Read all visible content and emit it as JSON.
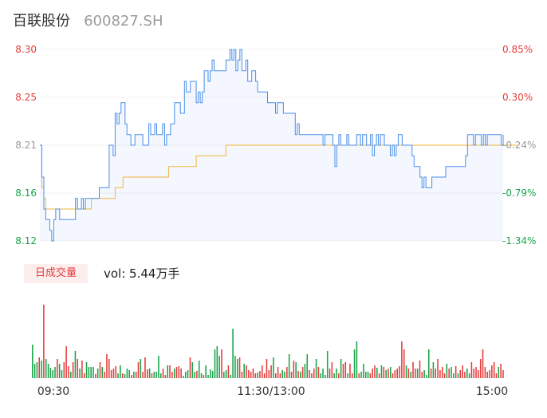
{
  "stock": {
    "name": "百联股份",
    "code": "600827.SH"
  },
  "volume_tab_label": "日成交量",
  "volume_text": "vol: 5.44万手",
  "colors": {
    "price_line": "#4a8ee8",
    "avg_line": "#f2b53a",
    "up": "#e43c3c",
    "down": "#1aa34a",
    "neutral": "#999999"
  },
  "chart_data": [
    {
      "type": "line",
      "ylim": [
        8.12,
        8.3
      ],
      "y_ticks": [
        "8.30",
        "8.25",
        "8.21",
        "8.16",
        "8.12"
      ],
      "pct_ticks": [
        "0.85%",
        "0.30%",
        "-0.24%",
        "-0.79%",
        "-1.34%"
      ],
      "x_ticks": [
        "09:30",
        "11:30/13:00",
        "15:00"
      ],
      "series": [
        {
          "key": "price",
          "values": [
            8.21,
            8.18,
            8.15,
            8.14,
            8.14,
            8.13,
            8.12,
            8.14,
            8.15,
            8.15,
            8.14,
            8.14,
            8.14,
            8.14,
            8.14,
            8.14,
            8.14,
            8.14,
            8.16,
            8.15,
            8.15,
            8.16,
            8.15,
            8.16,
            8.16,
            8.16,
            8.16,
            8.16,
            8.16,
            8.16,
            8.17,
            8.17,
            8.17,
            8.17,
            8.17,
            8.21,
            8.21,
            8.2,
            8.24,
            8.23,
            8.24,
            8.25,
            8.25,
            8.23,
            8.22,
            8.22,
            8.21,
            8.21,
            8.22,
            8.22,
            8.22,
            8.22,
            8.21,
            8.21,
            8.21,
            8.23,
            8.22,
            8.22,
            8.23,
            8.22,
            8.22,
            8.22,
            8.23,
            8.21,
            8.22,
            8.22,
            8.23,
            8.23,
            8.25,
            8.25,
            8.25,
            8.24,
            8.24,
            8.27,
            8.26,
            8.26,
            8.27,
            8.27,
            8.27,
            8.25,
            8.26,
            8.25,
            8.26,
            8.28,
            8.28,
            8.27,
            8.28,
            8.29,
            8.28,
            8.28,
            8.28,
            8.28,
            8.28,
            8.28,
            8.29,
            8.29,
            8.3,
            8.29,
            8.3,
            8.28,
            8.29,
            8.3,
            8.28,
            8.28,
            8.29,
            8.27,
            8.27,
            8.28,
            8.28,
            8.27,
            8.26,
            8.26,
            8.26,
            8.26,
            8.26,
            8.25,
            8.25,
            8.25,
            8.25,
            8.24,
            8.25,
            8.25,
            8.25,
            8.24,
            8.24,
            8.24,
            8.24,
            8.24,
            8.24,
            8.22,
            8.23,
            8.22,
            8.22,
            8.22,
            8.22,
            8.22,
            8.22,
            8.22,
            8.22,
            8.22,
            8.22,
            8.22,
            8.22,
            8.21,
            8.22,
            8.22,
            8.22,
            8.22,
            8.21,
            8.19,
            8.21,
            8.22,
            8.21,
            8.21,
            8.21,
            8.22,
            8.21,
            8.21,
            8.21,
            8.21,
            8.22,
            8.22,
            8.21,
            8.22,
            8.22,
            8.21,
            8.21,
            8.22,
            8.2,
            8.21,
            8.22,
            8.21,
            8.22,
            8.22,
            8.21,
            8.21,
            8.21,
            8.2,
            8.21,
            8.2,
            8.21,
            8.22,
            8.22,
            8.21,
            8.21,
            8.21,
            8.21,
            8.21,
            8.2,
            8.19,
            8.19,
            8.19,
            8.18,
            8.17,
            8.18,
            8.17,
            8.17,
            8.17,
            8.18,
            8.18,
            8.18,
            8.18,
            8.18,
            8.18,
            8.18,
            8.19,
            8.19,
            8.19,
            8.19,
            8.19,
            8.19,
            8.19,
            8.19,
            8.19,
            8.19,
            8.2,
            8.22,
            8.22,
            8.22,
            8.21,
            8.22,
            8.22,
            8.22,
            8.21,
            8.22,
            8.21,
            8.22,
            8.22,
            8.22,
            8.22,
            8.22,
            8.22,
            8.22,
            8.21,
            8.22
          ]
        },
        {
          "key": "average",
          "values": [
            8.21,
            8.17,
            8.16,
            8.15,
            8.15,
            8.15,
            8.15,
            8.15,
            8.15,
            8.15,
            8.15,
            8.15,
            8.15,
            8.15,
            8.15,
            8.15,
            8.15,
            8.15,
            8.15,
            8.15,
            8.15,
            8.15,
            8.15,
            8.15,
            8.15,
            8.15,
            8.16,
            8.16,
            8.16,
            8.16,
            8.16,
            8.16,
            8.16,
            8.16,
            8.16,
            8.16,
            8.16,
            8.16,
            8.17,
            8.17,
            8.17,
            8.17,
            8.18,
            8.18,
            8.18,
            8.18,
            8.18,
            8.18,
            8.18,
            8.18,
            8.18,
            8.18,
            8.18,
            8.18,
            8.18,
            8.18,
            8.18,
            8.18,
            8.18,
            8.18,
            8.18,
            8.18,
            8.18,
            8.18,
            8.18,
            8.19,
            8.19,
            8.19,
            8.19,
            8.19,
            8.19,
            8.19,
            8.19,
            8.19,
            8.19,
            8.19,
            8.19,
            8.19,
            8.19,
            8.2,
            8.2,
            8.2,
            8.2,
            8.2,
            8.2,
            8.2,
            8.2,
            8.2,
            8.2,
            8.2,
            8.2,
            8.2,
            8.2,
            8.2,
            8.21,
            8.21,
            8.21,
            8.21,
            8.21,
            8.21,
            8.21,
            8.21,
            8.21,
            8.21,
            8.21,
            8.21,
            8.21,
            8.21,
            8.21,
            8.21,
            8.21,
            8.21,
            8.21,
            8.21,
            8.21,
            8.21,
            8.21,
            8.21,
            8.21,
            8.21,
            8.21,
            8.21,
            8.21,
            8.21,
            8.21,
            8.21,
            8.21,
            8.21,
            8.21,
            8.21,
            8.21,
            8.21,
            8.21,
            8.21,
            8.21,
            8.21,
            8.21,
            8.21,
            8.21,
            8.21,
            8.21,
            8.21,
            8.21,
            8.21,
            8.21,
            8.21,
            8.21,
            8.21,
            8.21,
            8.21,
            8.21,
            8.21,
            8.21,
            8.21,
            8.21,
            8.21,
            8.21,
            8.21,
            8.21,
            8.21,
            8.21,
            8.21,
            8.21,
            8.21,
            8.21,
            8.21,
            8.21,
            8.21,
            8.21,
            8.21,
            8.21,
            8.21,
            8.21,
            8.21,
            8.21,
            8.21,
            8.21,
            8.21,
            8.21,
            8.21,
            8.21,
            8.21,
            8.21,
            8.21,
            8.21,
            8.21,
            8.21,
            8.21,
            8.21,
            8.21,
            8.21,
            8.21,
            8.21,
            8.21,
            8.21,
            8.21,
            8.21,
            8.21,
            8.21,
            8.21,
            8.21,
            8.21,
            8.21,
            8.21,
            8.21,
            8.21,
            8.21,
            8.21,
            8.21,
            8.21,
            8.21,
            8.21,
            8.21,
            8.21,
            8.21,
            8.21,
            8.21,
            8.21,
            8.21,
            8.21,
            8.21,
            8.21,
            8.21,
            8.21,
            8.21,
            8.21,
            8.21,
            8.21,
            8.21,
            8.21,
            8.21,
            8.21,
            8.21,
            8.21,
            8.21,
            8.21,
            8.21,
            8.21,
            8.21,
            8.21,
            8.21,
            8.21
          ]
        }
      ]
    },
    {
      "type": "bar",
      "values": [
        42,
        18,
        20,
        26,
        22,
        92,
        24,
        18,
        13,
        10,
        14,
        24,
        18,
        10,
        20,
        40,
        15,
        8,
        20,
        34,
        24,
        12,
        22,
        6,
        20,
        14,
        14,
        14,
        5,
        12,
        20,
        14,
        8,
        30,
        24,
        10,
        12,
        15,
        6,
        16,
        6,
        5,
        12,
        10,
        4,
        8,
        8,
        20,
        24,
        8,
        26,
        11,
        12,
        6,
        8,
        8,
        28,
        6,
        12,
        4,
        16,
        16,
        8,
        12,
        14,
        15,
        12,
        3,
        8,
        10,
        26,
        20,
        8,
        9,
        22,
        6,
        4,
        16,
        4,
        11,
        9,
        36,
        40,
        28,
        36,
        8,
        10,
        16,
        4,
        62,
        28,
        24,
        26,
        8,
        18,
        16,
        10,
        8,
        12,
        6,
        7,
        9,
        16,
        6,
        24,
        10,
        16,
        26,
        6,
        14,
        6,
        10,
        8,
        14,
        30,
        8,
        22,
        20,
        9,
        8,
        14,
        18,
        30,
        10,
        6,
        12,
        24,
        14,
        6,
        12,
        4,
        34,
        12,
        20,
        6,
        12,
        6,
        24,
        18,
        20,
        6,
        18,
        6,
        36,
        46,
        6,
        8,
        18,
        8,
        8,
        6,
        12,
        16,
        13,
        6,
        16,
        14,
        10,
        12,
        14,
        6,
        10,
        12,
        15,
        46,
        36,
        16,
        12,
        8,
        20,
        12,
        12,
        22,
        8,
        10,
        4,
        36,
        12,
        20,
        12,
        24,
        10,
        14,
        6,
        18,
        12,
        14,
        6,
        15,
        6,
        10,
        16,
        8,
        12,
        6,
        20,
        12,
        14,
        10,
        24,
        36,
        14,
        8,
        10,
        16,
        20,
        6,
        14,
        18,
        10
      ],
      "colors": [
        "down",
        "down",
        "down",
        "up",
        "down",
        "up",
        "down",
        "down",
        "down",
        "down",
        "down",
        "up",
        "down",
        "down",
        "up",
        "up",
        "up",
        "down",
        "up",
        "down",
        "up",
        "down",
        "up",
        "up",
        "down",
        "down",
        "down",
        "down",
        "up",
        "down",
        "up",
        "down",
        "up",
        "up",
        "up",
        "up",
        "up",
        "up",
        "down",
        "down",
        "up",
        "down",
        "down",
        "down",
        "up",
        "down",
        "up",
        "up",
        "down",
        "up",
        "up",
        "up",
        "down",
        "up",
        "down",
        "down",
        "down",
        "down",
        "up",
        "up",
        "down",
        "up",
        "up",
        "down",
        "up",
        "up",
        "up",
        "down",
        "down",
        "down",
        "up",
        "down",
        "down",
        "up",
        "down",
        "down",
        "up",
        "down",
        "down",
        "down",
        "down",
        "down",
        "down",
        "down",
        "up",
        "down",
        "down",
        "up",
        "down",
        "down",
        "down",
        "down",
        "up",
        "up",
        "down",
        "up",
        "up",
        "up",
        "up",
        "up",
        "down",
        "up",
        "up",
        "up",
        "up",
        "up",
        "up",
        "down",
        "up",
        "up",
        "up",
        "down",
        "down",
        "up",
        "down",
        "up",
        "up",
        "down",
        "up",
        "down",
        "up",
        "down",
        "down",
        "up",
        "up",
        "up",
        "down",
        "up",
        "down",
        "down",
        "down",
        "down",
        "up",
        "up",
        "down",
        "down",
        "up",
        "down",
        "up",
        "up",
        "down",
        "up",
        "up",
        "down",
        "down",
        "up",
        "down",
        "down",
        "down",
        "down",
        "up",
        "up",
        "up",
        "down",
        "up",
        "down",
        "up",
        "down",
        "up",
        "down",
        "up",
        "up",
        "up",
        "up",
        "up",
        "up",
        "down",
        "up",
        "down",
        "up",
        "up",
        "down",
        "up",
        "up",
        "down",
        "down",
        "down",
        "up",
        "down",
        "up",
        "up",
        "up",
        "up",
        "up",
        "down",
        "up",
        "down",
        "down",
        "up",
        "down",
        "up",
        "up",
        "up",
        "down",
        "down",
        "up",
        "up",
        "up",
        "up",
        "up",
        "up",
        "up",
        "up",
        "up",
        "up",
        "up",
        "up",
        "down",
        "up",
        "up",
        "down",
        "up",
        "up",
        "up",
        "up",
        "neutral"
      ]
    }
  ]
}
